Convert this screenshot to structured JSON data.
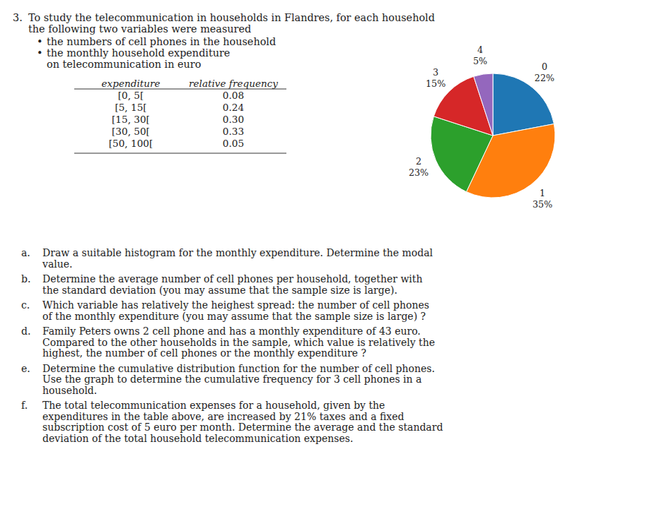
{
  "page": {
    "number": "3.",
    "header_lines": [
      "To study the telecommunication in households in Flandres, for each household",
      "the following two variables were measured"
    ],
    "bullet_mark": "•",
    "bullets": [
      [
        "the numbers of cell phones in the household"
      ],
      [
        "the monthly household expenditure",
        "on telecommunication in euro"
      ]
    ],
    "questions": [
      {
        "letter": "a.",
        "lines": [
          "Draw a suitable histogram for the monthly expenditure. Determine the modal",
          "value."
        ]
      },
      {
        "letter": "b.",
        "lines": [
          "Determine the average number of cell phones per household, together with",
          "the standard deviation (you may assume that the sample size is large)."
        ]
      },
      {
        "letter": "c.",
        "lines": [
          "Which variable has relatively the heighest spread: the number of cell phones",
          "of the monthly expenditure (you may assume that the sample size is large) ?"
        ]
      },
      {
        "letter": "d.",
        "lines": [
          "Family Peters owns 2 cell phone and has a monthly expenditure of 43 euro.",
          "Compared to the other households in the sample, which value is relatively the",
          "highest, the number of cell phones or the monthly expenditure ?"
        ]
      },
      {
        "letter": "e.",
        "lines": [
          "Determine the cumulative distribution function for the number of cell phones.",
          "Use the graph to determine the cumulative frequency for 3 cell phones in a",
          "household."
        ]
      },
      {
        "letter": "f.",
        "lines": [
          "The total telecommunication expenses for a household, given by the",
          "expenditures in the table above, are increased by 21% taxes and a fixed",
          "subscription cost of 5 euro per month. Determine the average and the standard",
          "deviation of the total household telecommunication expenses."
        ]
      }
    ]
  },
  "chart_data": [
    {
      "type": "table",
      "columns": [
        "expenditure",
        "relative frequency"
      ],
      "rows": [
        [
          "[0, 5[",
          "0.08"
        ],
        [
          "[5, 15[",
          "0.24"
        ],
        [
          "[15, 30[",
          "0.30"
        ],
        [
          "[30, 50[",
          "0.33"
        ],
        [
          "[50, 100[",
          "0.05"
        ]
      ]
    },
    {
      "type": "pie",
      "categories": [
        "0",
        "1",
        "2",
        "3",
        "4"
      ],
      "values": [
        22,
        35,
        23,
        15,
        5
      ],
      "value_labels": [
        "22%",
        "35%",
        "23%",
        "15%",
        "5%"
      ]
    }
  ]
}
